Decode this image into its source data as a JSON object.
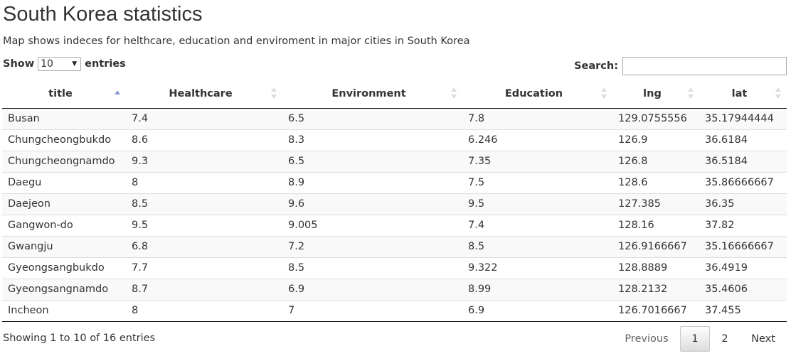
{
  "header": {
    "title": "South Korea statistics",
    "subtitle": "Map shows indeces for helthcare, education and enviroment in major cities in South Korea"
  },
  "length_control": {
    "prefix": "Show",
    "value": "10",
    "suffix": "entries"
  },
  "search": {
    "label": "Search:",
    "value": ""
  },
  "table": {
    "columns": [
      "title",
      "Healthcare",
      "Environment",
      "Education",
      "lng",
      "lat"
    ],
    "sorted_column": "title",
    "sort_direction": "ascending",
    "rows": [
      [
        "Busan",
        "7.4",
        "6.5",
        "7.8",
        "129.0755556",
        "35.17944444"
      ],
      [
        "Chungcheongbukdo",
        "8.6",
        "8.3",
        "6.246",
        "126.9",
        "36.6184"
      ],
      [
        "Chungcheongnamdo",
        "9.3",
        "6.5",
        "7.35",
        "126.8",
        "36.5184"
      ],
      [
        "Daegu",
        "8",
        "8.9",
        "7.5",
        "128.6",
        "35.86666667"
      ],
      [
        "Daejeon",
        "8.5",
        "9.6",
        "9.5",
        "127.385",
        "36.35"
      ],
      [
        "Gangwon-do",
        "9.5",
        "9.005",
        "7.4",
        "128.16",
        "37.82"
      ],
      [
        "Gwangju",
        "6.8",
        "7.2",
        "8.5",
        "126.9166667",
        "35.16666667"
      ],
      [
        "Gyeongsangbukdo",
        "7.7",
        "8.5",
        "9.322",
        "128.8889",
        "36.4919"
      ],
      [
        "Gyeongsangnamdo",
        "8.7",
        "6.9",
        "8.99",
        "128.2132",
        "35.4606"
      ],
      [
        "Incheon",
        "8",
        "7",
        "6.9",
        "126.7016667",
        "37.455"
      ]
    ]
  },
  "footer": {
    "info": "Showing 1 to 10 of 16 entries",
    "pagination": {
      "previous": "Previous",
      "pages": [
        "1",
        "2"
      ],
      "current_page": "1",
      "next": "Next"
    }
  }
}
